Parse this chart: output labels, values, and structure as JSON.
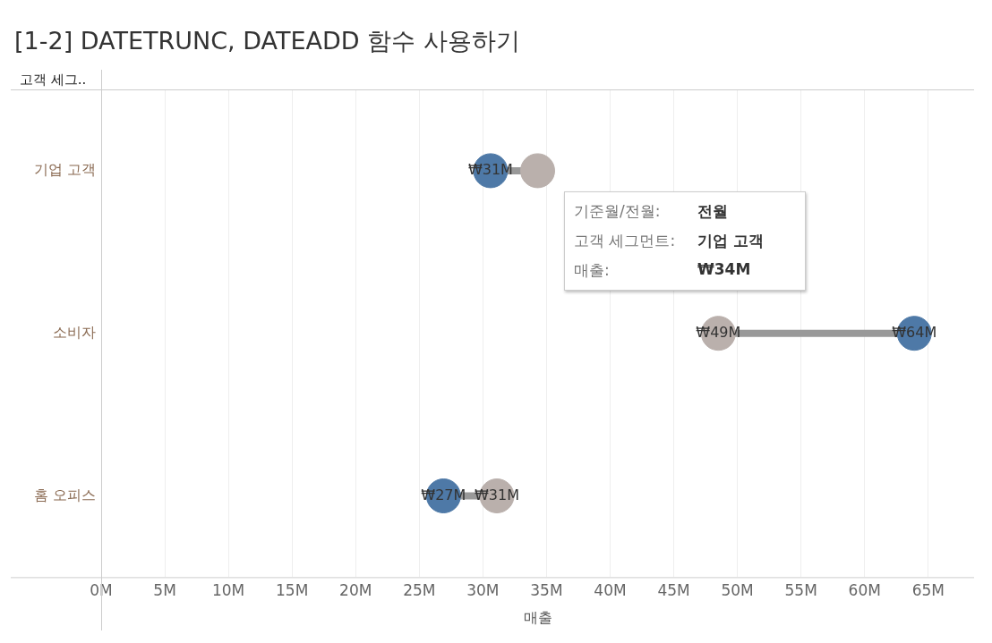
{
  "chart_data": {
    "type": "scatter",
    "title": "[1-2] DATETRUNC, DATEADD 함수 사용하기",
    "ylabel": "고객 세그..",
    "xlabel": "매출",
    "orientation": "horizontal",
    "categories": [
      "기업 고객",
      "소비자",
      "홈 오피스"
    ],
    "series": [
      {
        "color": "#4e79a7",
        "values": [
          30.6,
          63.9,
          26.9
        ],
        "value_labels": [
          "₩31M",
          "₩64M",
          "₩27M"
        ]
      },
      {
        "color": "#bab0ac",
        "values": [
          34.3,
          48.5,
          31.1
        ],
        "value_labels": [
          null,
          "₩49M",
          "₩31M"
        ]
      }
    ],
    "xlim": [
      0,
      68.6
    ],
    "xticks": [
      {
        "value": 0,
        "label": "0M"
      },
      {
        "value": 5,
        "label": "5M"
      },
      {
        "value": 10,
        "label": "10M"
      },
      {
        "value": 15,
        "label": "15M"
      },
      {
        "value": 20,
        "label": "20M"
      },
      {
        "value": 25,
        "label": "25M"
      },
      {
        "value": 30,
        "label": "30M"
      },
      {
        "value": 35,
        "label": "35M"
      },
      {
        "value": 40,
        "label": "40M"
      },
      {
        "value": 45,
        "label": "45M"
      },
      {
        "value": 50,
        "label": "50M"
      },
      {
        "value": 55,
        "label": "55M"
      },
      {
        "value": 60,
        "label": "60M"
      },
      {
        "value": 65,
        "label": "65M"
      }
    ],
    "grid": "x",
    "marker": "circle",
    "legend": false,
    "annotations": [
      "기준월/전월:",
      "전월",
      "고객 세그먼트:",
      "기업 고객",
      "매출:",
      "₩34M"
    ]
  }
}
